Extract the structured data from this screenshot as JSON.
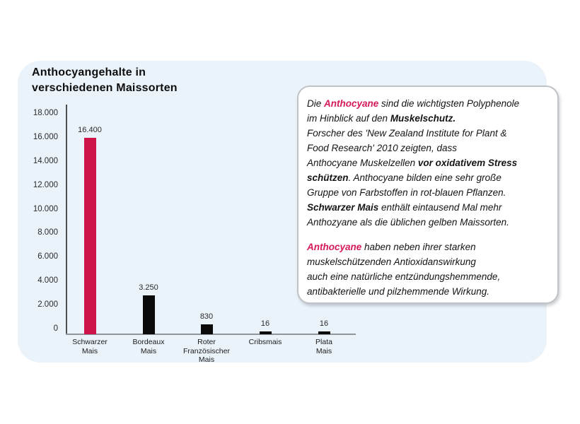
{
  "accent_color": "#D6195B",
  "panel_bg": "#EAF2FA",
  "chart_data": {
    "type": "bar",
    "title": "Anthocyangehalte in verschiedenen Maissorten",
    "title_lines": [
      "Anthocyangehalte in",
      "verschiedenen Maissorten"
    ],
    "categories": [
      "Schwarzer Mais",
      "Bordeaux Mais",
      "Roter Französischer Mais",
      "Cribsmais",
      "Plata Mais"
    ],
    "category_lines": [
      [
        "Schwarzer",
        "Mais"
      ],
      [
        "Bordeaux",
        "Mais"
      ],
      [
        "Roter",
        "Französischer",
        "Mais"
      ],
      [
        "Cribsmais"
      ],
      [
        "Plata",
        "Mais"
      ]
    ],
    "values": [
      16400,
      3250,
      830,
      16,
      16
    ],
    "value_labels": [
      "16.400",
      "3.250",
      "830",
      "16",
      "16"
    ],
    "bar_colors": [
      "#CE1548",
      "#0A0A0A",
      "#0A0A0A",
      "#0A0A0A",
      "#0A0A0A"
    ],
    "xlabel": "",
    "ylabel": "",
    "ylim": [
      0,
      18000
    ],
    "yticks": [
      0,
      2000,
      4000,
      6000,
      8000,
      10000,
      12000,
      14000,
      16000,
      18000
    ],
    "ytick_labels": [
      "0",
      "2.000",
      "4.000",
      "6.000",
      "8.000",
      "10.000",
      "12.000",
      "14.000",
      "16.000",
      "18.000"
    ],
    "grid": false,
    "legend": false
  },
  "infobox": {
    "paragraphs": [
      {
        "lines": [
          [
            {
              "t": "Die ",
              "s": ""
            },
            {
              "t": "Anthocyane",
              "s": "a"
            },
            {
              "t": " sind die wichtigsten Polyphenole",
              "s": ""
            }
          ],
          [
            {
              "t": "im Hinblick auf den ",
              "s": ""
            },
            {
              "t": "Muskelschutz.",
              "s": "b"
            }
          ],
          [
            {
              "t": "Forscher des 'New Zealand Institute for Plant &",
              "s": ""
            }
          ],
          [
            {
              "t": "Food Research' 2010 zeigten, dass",
              "s": ""
            }
          ],
          [
            {
              "t": "Anthocyane Muskelzellen ",
              "s": ""
            },
            {
              "t": "vor oxidativem Stress",
              "s": "b"
            }
          ],
          [
            {
              "t": "schützen",
              "s": "b"
            },
            {
              "t": ".  Anthocyane bilden eine sehr große",
              "s": ""
            }
          ],
          [
            {
              "t": "Gruppe von Farbstoffen in rot-blauen Pflanzen.",
              "s": ""
            }
          ],
          [
            {
              "t": "Schwarzer Mais",
              "s": "b"
            },
            {
              "t": "  enthält eintausend Mal mehr",
              "s": ""
            }
          ],
          [
            {
              "t": "Anthozyane als die üblichen gelben Maissorten.",
              "s": ""
            }
          ]
        ]
      },
      {
        "lines": [
          [
            {
              "t": "Anthocyane",
              "s": "a"
            },
            {
              "t": " haben neben ihrer starken",
              "s": ""
            }
          ],
          [
            {
              "t": "muskelschützenden Antioxidanswirkung",
              "s": ""
            }
          ],
          [
            {
              "t": "auch eine natürliche entzündungshemmende,",
              "s": ""
            }
          ],
          [
            {
              "t": "antibakterielle und pilzhemmende Wirkung.",
              "s": ""
            }
          ]
        ]
      }
    ]
  }
}
